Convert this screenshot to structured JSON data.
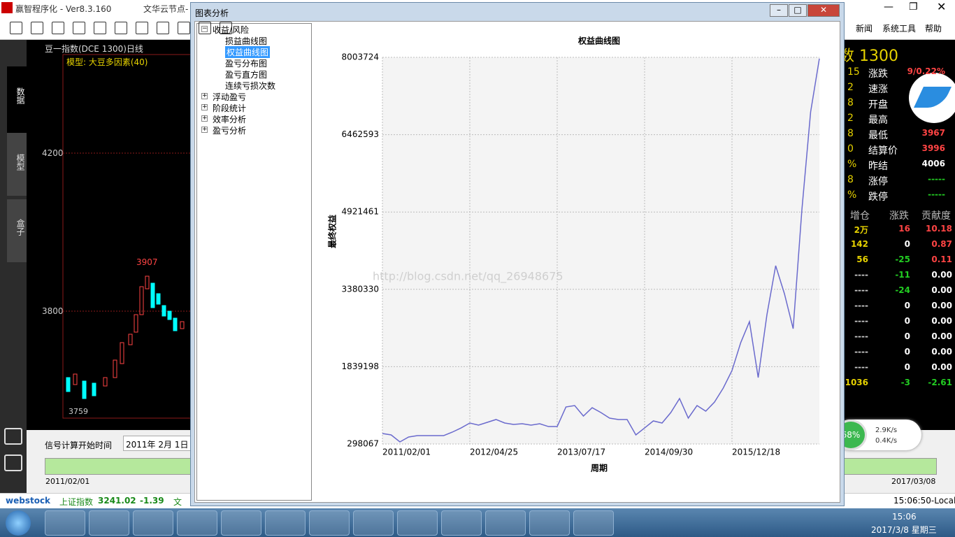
{
  "app": {
    "title": "赢智程序化 - Ver8.3.160",
    "node": "文华云节点-",
    "menu": [
      "新闻",
      "系统工具",
      "帮助"
    ]
  },
  "left_chart": {
    "title": "豆一指数(DCE 1300)日线",
    "model": "模型: 大豆多因素(40)",
    "tabs": [
      "数据",
      "模型",
      "盒子"
    ],
    "price_high": "4200",
    "price_low": "3800",
    "peak_label": "3907",
    "low_label": "3759"
  },
  "signal": {
    "label": "信号计算开始时间",
    "date": "2011年 2月 1日",
    "start": "2011/02/01",
    "end": "2017/03/08"
  },
  "quote": {
    "symbol": "数 1300",
    "rows": [
      [
        "15",
        "涨跌",
        "9/0.22%"
      ],
      [
        "2",
        "速涨",
        ""
      ],
      [
        "8",
        "开盘",
        ""
      ],
      [
        "2",
        "最高",
        ""
      ],
      [
        "8",
        "最低",
        "3967"
      ],
      [
        "0",
        "结算价",
        "3996"
      ],
      [
        "%",
        "昨结",
        "4006"
      ],
      [
        "8",
        "涨停",
        "-----"
      ],
      [
        "%",
        "跌停",
        "-----"
      ]
    ]
  },
  "table": {
    "headers": [
      "增仓",
      "涨跌",
      "贡献度"
    ],
    "rows": [
      [
        "2万",
        "16",
        "10.18"
      ],
      [
        "142",
        "0",
        "0.87"
      ],
      [
        "56",
        "-25",
        "0.11"
      ],
      [
        "----",
        "-11",
        "0.00"
      ],
      [
        "----",
        "-24",
        "0.00"
      ],
      [
        "----",
        "0",
        "0.00"
      ],
      [
        "----",
        "0",
        "0.00"
      ],
      [
        "----",
        "0",
        "0.00"
      ],
      [
        "----",
        "0",
        "0.00"
      ],
      [
        "----",
        "0",
        "0.00"
      ],
      [
        "1036",
        "-3",
        "-2.61"
      ]
    ]
  },
  "network": {
    "percent": "68%",
    "up": "2.9K/s",
    "down": "0.4K/s"
  },
  "status": {
    "brand": "webstock",
    "index_name": "上证指数",
    "index_value": "3241.02",
    "index_change": "-1.39",
    "more": "文",
    "clock": "15:06:50-Local"
  },
  "taskbar": {
    "time": "15:06",
    "date": "2017/3/8 星期三"
  },
  "dialog": {
    "title": "图表分析",
    "tree": [
      {
        "label": "收益/风险",
        "children": [
          "损益曲线图",
          "权益曲线图",
          "盈亏分布图",
          "盈亏直方图",
          "连续亏损次数"
        ]
      },
      {
        "label": "浮动盈亏"
      },
      {
        "label": "阶段统计"
      },
      {
        "label": "效率分析"
      },
      {
        "label": "盈亏分析"
      }
    ],
    "watermark": "http://blog.csdn.net/qq_26948675"
  },
  "chart_data": {
    "type": "line",
    "title": "权益曲线图",
    "x_label": "周期",
    "y_label": "最终权益",
    "series": [
      {
        "name": "最终权益",
        "color": "#6a6acd",
        "values": [
          507000,
          479000,
          340000,
          437000,
          465000,
          465000,
          465000,
          465000,
          535000,
          618000,
          716000,
          674000,
          730000,
          786000,
          716000,
          688000,
          702000,
          674000,
          702000,
          646000,
          646000,
          1036000,
          1064000,
          855000,
          1022000,
          925000,
          814000,
          786000,
          786000,
          479000,
          618000,
          758000,
          716000,
          925000,
          1204000,
          814000,
          1064000,
          953000,
          1134000,
          1413000,
          1761000,
          2318000,
          2737000,
          1622000,
          2876000,
          3851000,
          3294000,
          2597000,
          4966000,
          6916000,
          7980000
        ]
      }
    ],
    "xlim": [
      0,
      50
    ],
    "xticks": [
      {
        "value": 0,
        "label": "2011/02/01"
      },
      {
        "value": 10,
        "label": "2012/04/25"
      },
      {
        "value": 20,
        "label": "2013/07/17"
      },
      {
        "value": 30,
        "label": "2014/09/30"
      },
      {
        "value": 40,
        "label": "2015/12/18"
      }
    ],
    "ylim": [
      298067,
      8003724
    ],
    "yticks": [
      298067,
      1839198,
      3380330,
      4921461,
      6462593,
      8003724
    ],
    "grid": true
  }
}
